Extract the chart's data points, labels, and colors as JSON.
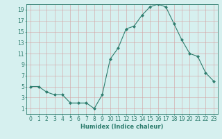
{
  "x": [
    0,
    1,
    2,
    3,
    4,
    5,
    6,
    7,
    8,
    9,
    10,
    11,
    12,
    13,
    14,
    15,
    16,
    17,
    18,
    19,
    20,
    21,
    22,
    23
  ],
  "y": [
    5,
    5,
    4,
    3.5,
    3.5,
    2,
    2,
    2,
    1,
    3.5,
    10,
    12,
    15.5,
    16,
    18,
    19.5,
    20,
    19.5,
    16.5,
    13.5,
    11,
    10.5,
    7.5,
    6
  ],
  "line_color": "#2e7d6e",
  "marker": "D",
  "marker_size": 2,
  "bg_color": "#d6f0ef",
  "grid_color": "#c0c8c8",
  "xlabel": "Humidex (Indice chaleur)",
  "xlim": [
    -0.5,
    23.5
  ],
  "ylim": [
    0,
    20
  ],
  "xticks": [
    0,
    1,
    2,
    3,
    4,
    5,
    6,
    7,
    8,
    9,
    10,
    11,
    12,
    13,
    14,
    15,
    16,
    17,
    18,
    19,
    20,
    21,
    22,
    23
  ],
  "yticks": [
    1,
    3,
    5,
    7,
    9,
    11,
    13,
    15,
    17,
    19
  ],
  "tick_color": "#2e7d6e",
  "axis_color": "#2e7d6e",
  "label_fontsize": 6,
  "tick_fontsize": 5.5
}
